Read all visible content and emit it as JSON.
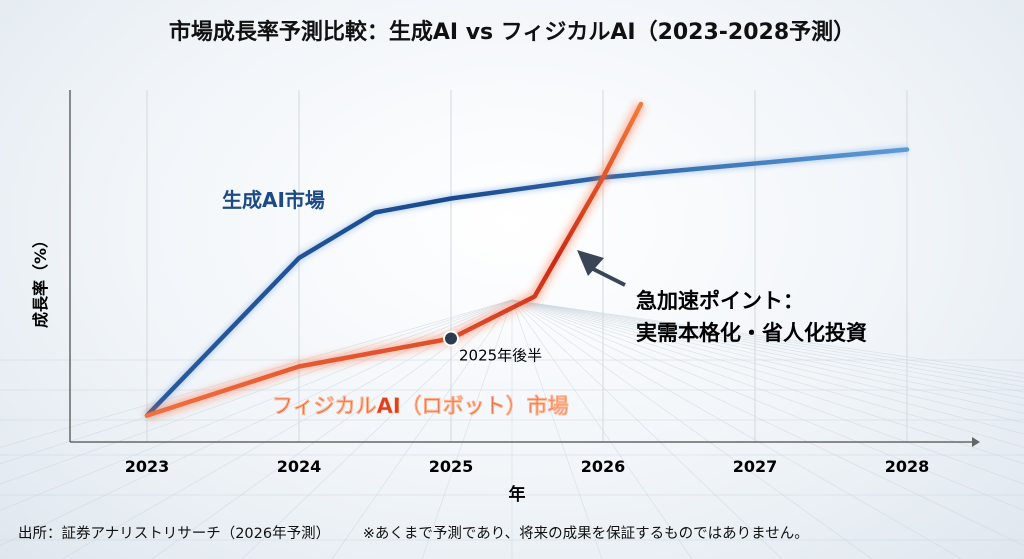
{
  "title": "市場成長率予測比較：生成AI vs フィジカルAI（2023-2028予測）",
  "chart_data": {
    "type": "line",
    "title": "市場成長率予測比較：生成AI vs フィジカルAI（2023-2028予測）",
    "xlabel": "年",
    "ylabel": "成長率（%）",
    "x_ticks": [
      "2023",
      "2024",
      "2025",
      "2026",
      "2027",
      "2028"
    ],
    "xlim": [
      2023,
      2028
    ],
    "ylim": [
      0,
      100
    ],
    "grid": "vertical",
    "series": [
      {
        "name": "生成AI市場",
        "color": "#1f4e96",
        "x": [
          2023,
          2024,
          2024.5,
          2025,
          2026,
          2028
        ],
        "y": [
          7,
          52,
          65,
          69,
          75,
          83
        ]
      },
      {
        "name": "フィジカルAI（ロボット）市場",
        "color": "#e8452a",
        "x": [
          2023,
          2024,
          2025,
          2025.55,
          2026,
          2026.25
        ],
        "y": [
          7,
          21,
          29,
          41,
          75,
          96
        ]
      }
    ],
    "annotations": [
      {
        "text": "2025年後半",
        "x": 2025,
        "y": 29,
        "marker": "dot"
      },
      {
        "text": "急加速ポイント：",
        "text2": "実需本格化・省人化投資",
        "arrow_to_x": 2025.85,
        "arrow_to_y": 55
      }
    ]
  },
  "footer": {
    "source": "出所：証券アナリストリサーチ（2026年予測）",
    "disclaimer": "※あくまで予測であり、将来の成果を保証するものではありません。"
  }
}
